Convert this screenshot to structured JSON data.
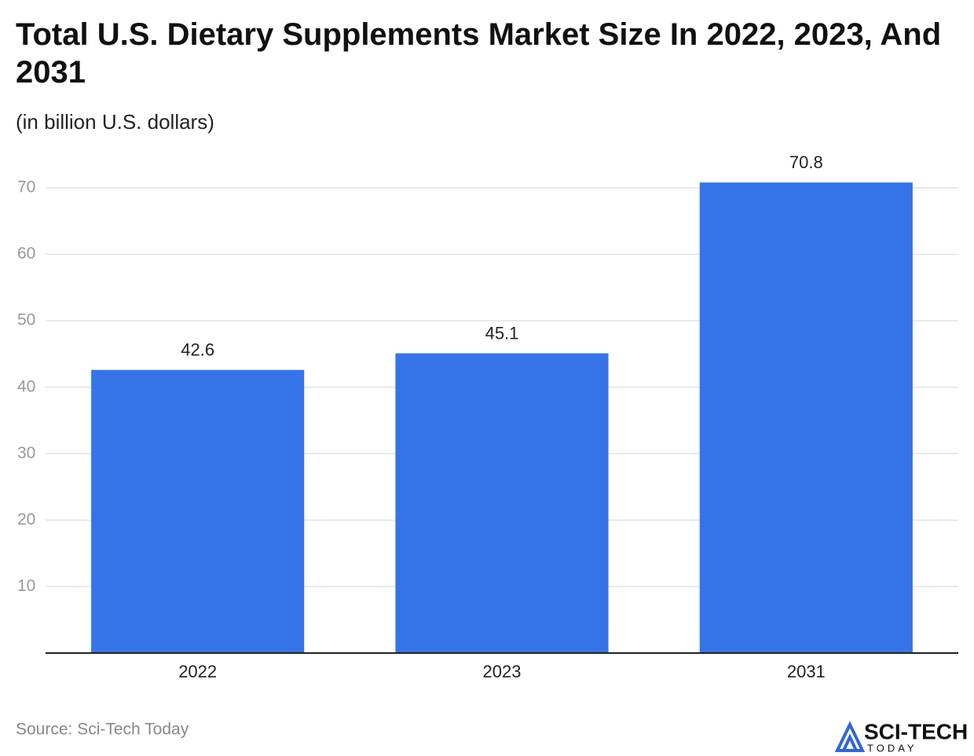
{
  "chart_data": {
    "type": "bar",
    "title": "Total U.S. Dietary Supplements Market Size In 2022, 2023, And 2031",
    "subtitle": "(in billion U.S. dollars)",
    "categories": [
      "2022",
      "2023",
      "2031"
    ],
    "values": [
      42.6,
      45.1,
      70.8
    ],
    "color": "#3474e8",
    "ylim": [
      0,
      70
    ],
    "yticks": [
      10,
      20,
      30,
      40,
      50,
      60,
      70
    ],
    "grid": true,
    "source": "Source: Sci-Tech Today"
  },
  "logo": {
    "name": "SCI-TECH",
    "tagline": "TODAY"
  }
}
